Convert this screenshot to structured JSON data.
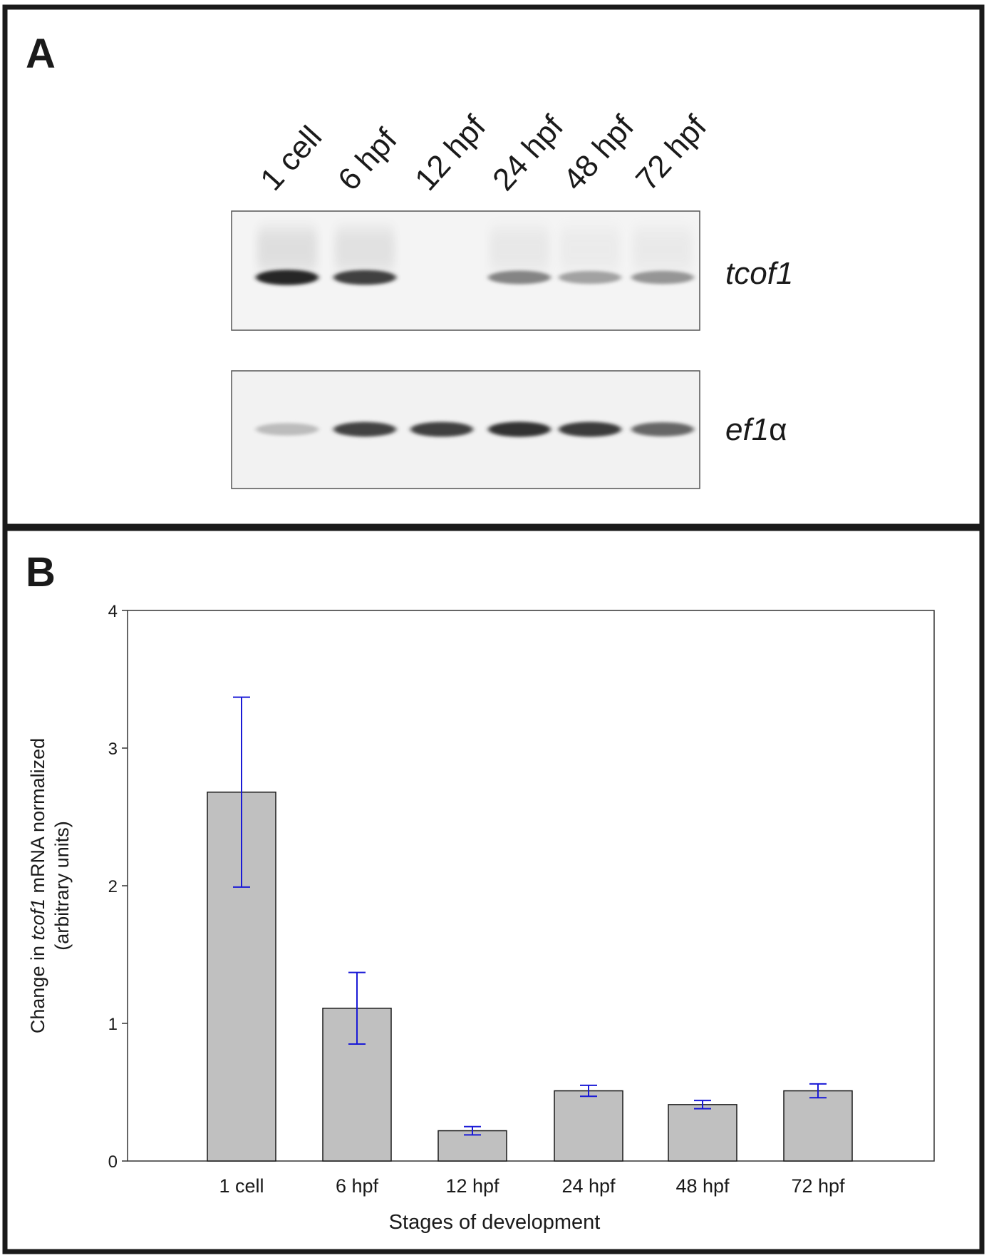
{
  "panels": {
    "a_label": "A",
    "b_label": "B"
  },
  "gel": {
    "lanes": [
      "1 cell",
      "6 hpf",
      "12 hpf",
      "24 hpf",
      "48 hpf",
      "72 hpf"
    ],
    "genes": [
      {
        "name": "tcof1",
        "name_main": "tcof1",
        "name_suffix": "",
        "band_intensity": [
          0.92,
          0.8,
          0.0,
          0.48,
          0.34,
          0.4
        ]
      },
      {
        "name": "ef1α",
        "name_main": "ef1",
        "name_suffix": "α",
        "band_intensity": [
          0.22,
          0.78,
          0.8,
          0.86,
          0.82,
          0.62
        ]
      }
    ]
  },
  "chart_data": {
    "type": "bar",
    "categories": [
      "1 cell",
      "6 hpf",
      "12 hpf",
      "24 hpf",
      "48 hpf",
      "72 hpf"
    ],
    "values": [
      2.68,
      1.11,
      0.22,
      0.51,
      0.41,
      0.51
    ],
    "errors": [
      0.69,
      0.26,
      0.03,
      0.04,
      0.03,
      0.05
    ],
    "ylim": [
      0,
      4
    ],
    "yticks": [
      "0",
      "1",
      "2",
      "3",
      "4"
    ],
    "xlabel": "Stages of development",
    "ylabel_parts": [
      "Change in ",
      "tcof1",
      " mRNA normalized"
    ],
    "ylabel_line2": "(arbitrary units)",
    "bar_color": "#c0c0c0",
    "error_color": "#1a1ad6",
    "grid": false
  }
}
